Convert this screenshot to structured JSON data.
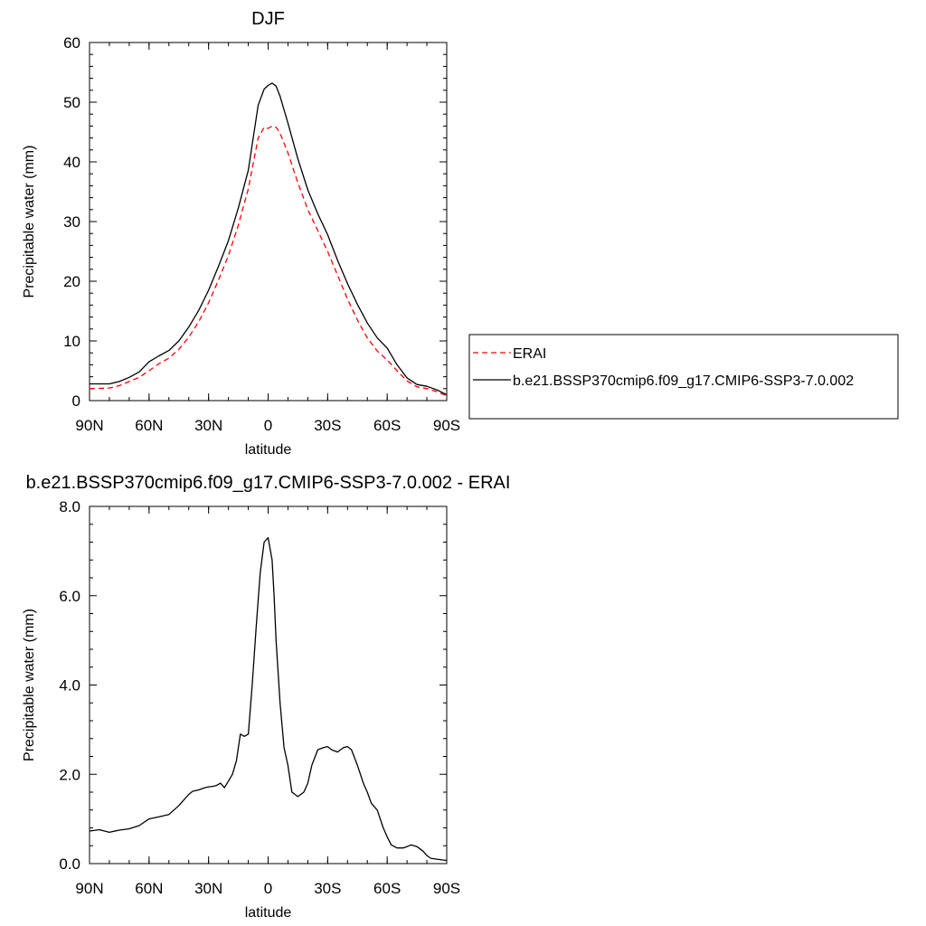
{
  "chart_data": [
    {
      "type": "line",
      "title": "DJF",
      "xlabel": "latitude",
      "ylabel": "Precipitable water (mm)",
      "xlim": [
        -90,
        90
      ],
      "ylim": [
        0,
        60
      ],
      "x_ticks": [
        {
          "value": -90,
          "label": "90N"
        },
        {
          "value": -60,
          "label": "60N"
        },
        {
          "value": -30,
          "label": "30N"
        },
        {
          "value": 0,
          "label": "0"
        },
        {
          "value": 30,
          "label": "30S"
        },
        {
          "value": 60,
          "label": "60S"
        },
        {
          "value": 90,
          "label": "90S"
        }
      ],
      "y_ticks": [
        {
          "value": 0,
          "label": "0"
        },
        {
          "value": 10,
          "label": "10"
        },
        {
          "value": 20,
          "label": "20"
        },
        {
          "value": 30,
          "label": "30"
        },
        {
          "value": 40,
          "label": "40"
        },
        {
          "value": 50,
          "label": "50"
        },
        {
          "value": 60,
          "label": "60"
        }
      ],
      "grid": false,
      "legend_position": "right",
      "series": [
        {
          "name": "ERAI",
          "color": "#ff0000",
          "dash": "dashed",
          "x": [
            -90,
            -80,
            -75,
            -70,
            -65,
            -60,
            -55,
            -50,
            -45,
            -40,
            -35,
            -30,
            -25,
            -20,
            -15,
            -10,
            -5,
            -2,
            0,
            2,
            4,
            6,
            10,
            15,
            20,
            25,
            30,
            35,
            40,
            45,
            50,
            55,
            60,
            65,
            70,
            75,
            80,
            85,
            90
          ],
          "y": [
            2.0,
            2.1,
            2.5,
            3.2,
            3.9,
            5.0,
            6.2,
            7.1,
            8.6,
            10.6,
            13.2,
            16.4,
            20.2,
            24.3,
            29.4,
            35.5,
            44.0,
            45.8,
            45.6,
            46.0,
            45.8,
            44.8,
            41.5,
            36.5,
            32.0,
            28.5,
            25.0,
            21.0,
            17.0,
            13.5,
            10.5,
            8.3,
            6.8,
            5.0,
            3.3,
            2.3,
            2.0,
            1.5,
            0.8
          ]
        },
        {
          "name": "b.e21.BSSP370cmip6.f09_g17.CMIP6-SSP3-7.0.002",
          "color": "#000000",
          "dash": "solid",
          "x": [
            -90,
            -80,
            -75,
            -70,
            -65,
            -60,
            -55,
            -50,
            -45,
            -40,
            -35,
            -30,
            -25,
            -20,
            -15,
            -10,
            -5,
            -2,
            0,
            2,
            4,
            6,
            10,
            15,
            20,
            25,
            30,
            35,
            40,
            45,
            50,
            55,
            60,
            65,
            70,
            75,
            80,
            85,
            90
          ],
          "y": [
            2.8,
            2.8,
            3.2,
            3.9,
            4.8,
            6.5,
            7.5,
            8.4,
            10.0,
            12.3,
            15.1,
            18.5,
            22.5,
            26.8,
            32.3,
            38.6,
            49.5,
            52.2,
            52.8,
            53.2,
            52.7,
            51.0,
            46.5,
            40.5,
            35.3,
            31.3,
            27.8,
            23.5,
            19.6,
            16.1,
            13.0,
            10.5,
            8.8,
            6.0,
            3.8,
            2.7,
            2.4,
            1.8,
            1.0
          ]
        }
      ]
    },
    {
      "type": "line",
      "title": "b.e21.BSSP370cmip6.f09_g17.CMIP6-SSP3-7.0.002 - ERAI",
      "xlabel": "latitude",
      "ylabel": "Precipitable water (mm)",
      "xlim": [
        -90,
        90
      ],
      "ylim": [
        0,
        8
      ],
      "x_ticks": [
        {
          "value": -90,
          "label": "90N"
        },
        {
          "value": -60,
          "label": "60N"
        },
        {
          "value": -30,
          "label": "30N"
        },
        {
          "value": 0,
          "label": "0"
        },
        {
          "value": 30,
          "label": "30S"
        },
        {
          "value": 60,
          "label": "60S"
        },
        {
          "value": 90,
          "label": "90S"
        }
      ],
      "y_ticks": [
        {
          "value": 0,
          "label": "0.0"
        },
        {
          "value": 2,
          "label": "2.0"
        },
        {
          "value": 4,
          "label": "4.0"
        },
        {
          "value": 6,
          "label": "6.0"
        },
        {
          "value": 8,
          "label": "8.0"
        }
      ],
      "grid": false,
      "series": [
        {
          "color": "#000000",
          "dash": "solid",
          "x": [
            -90,
            -85,
            -80,
            -75,
            -70,
            -65,
            -60,
            -55,
            -50,
            -45,
            -40,
            -38,
            -35,
            -32,
            -30,
            -28,
            -26,
            -24,
            -22,
            -20,
            -18,
            -16,
            -14,
            -12,
            -10,
            -8,
            -6,
            -4,
            -2,
            0,
            2,
            3,
            4,
            6,
            8,
            10,
            12,
            15,
            18,
            20,
            22,
            25,
            28,
            30,
            32,
            35,
            38,
            40,
            42,
            45,
            48,
            50,
            52,
            55,
            58,
            60,
            62,
            65,
            68,
            70,
            72,
            75,
            78,
            80,
            82,
            85,
            88,
            90
          ],
          "y": [
            0.73,
            0.76,
            0.7,
            0.75,
            0.78,
            0.85,
            1.0,
            1.05,
            1.1,
            1.3,
            1.55,
            1.62,
            1.65,
            1.7,
            1.72,
            1.73,
            1.75,
            1.8,
            1.7,
            1.85,
            2.0,
            2.3,
            2.9,
            2.85,
            2.9,
            4.0,
            5.3,
            6.5,
            7.2,
            7.3,
            6.8,
            6.0,
            5.0,
            3.6,
            2.6,
            2.2,
            1.6,
            1.5,
            1.6,
            1.8,
            2.2,
            2.55,
            2.6,
            2.62,
            2.55,
            2.5,
            2.6,
            2.62,
            2.55,
            2.2,
            1.8,
            1.6,
            1.35,
            1.2,
            0.8,
            0.6,
            0.42,
            0.35,
            0.35,
            0.38,
            0.42,
            0.38,
            0.28,
            0.18,
            0.12,
            0.1,
            0.08,
            0.07
          ]
        }
      ]
    }
  ]
}
